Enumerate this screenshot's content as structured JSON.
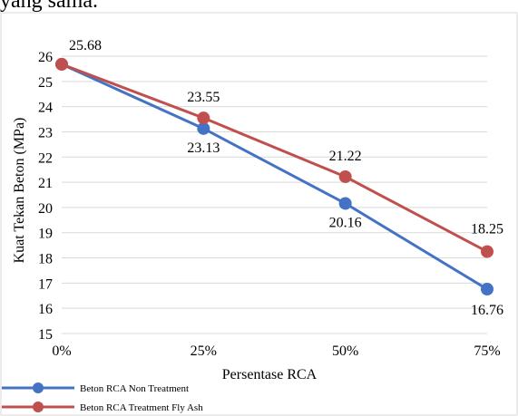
{
  "header_text": "yang sama.",
  "chart_data": {
    "type": "line",
    "categories": [
      "0%",
      "25%",
      "50%",
      "75%"
    ],
    "series": [
      {
        "name": "Beton RCA Non Treatment",
        "color": "#4472C4",
        "values": [
          25.68,
          23.13,
          20.16,
          16.76
        ],
        "labels": [
          "25.68",
          "23.13",
          "20.16",
          "16.76"
        ]
      },
      {
        "name": "Beton RCA Treatment Fly Ash",
        "color": "#C0504D",
        "values": [
          25.68,
          23.55,
          21.22,
          18.25
        ],
        "labels": [
          "",
          "23.55",
          "21.22",
          "18.25"
        ]
      }
    ],
    "xlabel": "Persentase RCA",
    "ylabel": "Kuat Tekan Beton (MPa)",
    "ylim": [
      15,
      26
    ],
    "yticks": [
      "15",
      "16",
      "17",
      "18",
      "19",
      "20",
      "21",
      "22",
      "23",
      "24",
      "25",
      "26"
    ],
    "grid": "horizontal",
    "legend": "bottom-left"
  }
}
